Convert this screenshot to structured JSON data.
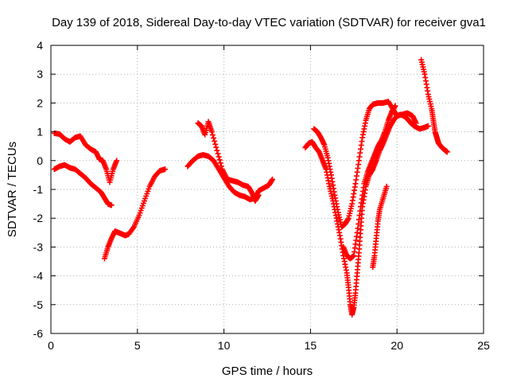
{
  "chart_data": {
    "type": "scatter",
    "title": "Day 139 of 2018, Sidereal Day-to-day VTEC variation (SDTVAR) for receiver gva1",
    "xlabel": "GPS time / hours",
    "ylabel": "SDTVAR / TECUs",
    "xlim": [
      0,
      25
    ],
    "ylim": [
      -6,
      4
    ],
    "xticks": [
      0,
      5,
      10,
      15,
      20,
      25
    ],
    "yticks": [
      -6,
      -5,
      -4,
      -3,
      -2,
      -1,
      0,
      1,
      2,
      3,
      4
    ],
    "grid": true,
    "marker": "plus",
    "color": "#ff0000",
    "series": [
      {
        "points": [
          [
            0.2,
            0.95
          ],
          [
            0.5,
            0.92
          ],
          [
            0.8,
            0.75
          ],
          [
            1.1,
            0.65
          ],
          [
            1.4,
            0.8
          ],
          [
            1.7,
            0.85
          ],
          [
            2.0,
            0.55
          ],
          [
            2.3,
            0.4
          ],
          [
            2.6,
            0.3
          ],
          [
            2.8,
            0.05
          ],
          [
            3.0,
            0.0
          ],
          [
            3.2,
            -0.3
          ],
          [
            3.4,
            -0.75
          ],
          [
            3.6,
            -0.3
          ],
          [
            3.8,
            0.0
          ]
        ]
      },
      {
        "points": [
          [
            0.2,
            -0.3
          ],
          [
            0.5,
            -0.2
          ],
          [
            0.8,
            -0.15
          ],
          [
            1.1,
            -0.25
          ],
          [
            1.4,
            -0.3
          ],
          [
            1.7,
            -0.45
          ],
          [
            2.0,
            -0.6
          ],
          [
            2.3,
            -0.8
          ],
          [
            2.6,
            -0.95
          ],
          [
            2.9,
            -1.1
          ],
          [
            3.1,
            -1.3
          ],
          [
            3.3,
            -1.5
          ],
          [
            3.5,
            -1.55
          ]
        ]
      },
      {
        "points": [
          [
            3.1,
            -3.4
          ],
          [
            3.3,
            -3.0
          ],
          [
            3.5,
            -2.7
          ],
          [
            3.7,
            -2.45
          ],
          [
            3.9,
            -2.5
          ],
          [
            4.1,
            -2.55
          ],
          [
            4.3,
            -2.6
          ],
          [
            4.5,
            -2.55
          ],
          [
            4.8,
            -2.3
          ],
          [
            5.1,
            -1.9
          ],
          [
            5.4,
            -1.4
          ],
          [
            5.7,
            -0.9
          ],
          [
            6.0,
            -0.55
          ],
          [
            6.3,
            -0.35
          ],
          [
            6.6,
            -0.3
          ]
        ]
      },
      {
        "points": [
          [
            7.9,
            -0.2
          ],
          [
            8.2,
            0.0
          ],
          [
            8.5,
            0.15
          ],
          [
            8.8,
            0.2
          ],
          [
            9.1,
            0.15
          ],
          [
            9.4,
            0.0
          ],
          [
            9.7,
            -0.3
          ],
          [
            10.0,
            -0.6
          ],
          [
            10.3,
            -0.9
          ],
          [
            10.6,
            -1.1
          ],
          [
            10.9,
            -1.2
          ],
          [
            11.2,
            -1.25
          ],
          [
            11.5,
            -1.35
          ],
          [
            11.8,
            -1.3
          ],
          [
            12.0,
            -1.05
          ],
          [
            12.3,
            -0.95
          ],
          [
            12.6,
            -0.85
          ],
          [
            12.8,
            -0.65
          ]
        ]
      },
      {
        "points": [
          [
            8.5,
            1.3
          ],
          [
            8.7,
            1.2
          ],
          [
            8.9,
            0.9
          ],
          [
            9.1,
            1.35
          ],
          [
            9.3,
            1.0
          ],
          [
            9.6,
            0.35
          ],
          [
            9.9,
            -0.3
          ],
          [
            10.2,
            -0.65
          ],
          [
            10.5,
            -0.7
          ],
          [
            10.8,
            -0.75
          ],
          [
            11.1,
            -0.85
          ],
          [
            11.4,
            -0.9
          ],
          [
            11.6,
            -1.1
          ],
          [
            11.8,
            -1.4
          ],
          [
            12.0,
            -1.2
          ]
        ]
      },
      {
        "points": [
          [
            14.7,
            0.45
          ],
          [
            14.9,
            0.6
          ],
          [
            15.1,
            0.65
          ],
          [
            15.3,
            0.45
          ],
          [
            15.5,
            0.3
          ],
          [
            15.7,
            0.0
          ],
          [
            15.9,
            -0.3
          ],
          [
            16.1,
            -0.9
          ],
          [
            16.3,
            -1.4
          ],
          [
            16.5,
            -2.0
          ],
          [
            16.7,
            -2.6
          ],
          [
            16.9,
            -3.3
          ],
          [
            17.1,
            -3.9
          ],
          [
            17.2,
            -4.4
          ],
          [
            17.3,
            -5.0
          ],
          [
            17.4,
            -5.35
          ],
          [
            17.5,
            -5.1
          ],
          [
            17.6,
            -4.6
          ],
          [
            17.7,
            -3.9
          ],
          [
            17.8,
            -3.2
          ],
          [
            17.9,
            -2.4
          ],
          [
            18.0,
            -1.6
          ],
          [
            18.2,
            -0.9
          ],
          [
            18.4,
            -0.5
          ],
          [
            18.6,
            -0.3
          ],
          [
            18.8,
            0.0
          ],
          [
            19.0,
            0.35
          ],
          [
            19.2,
            0.6
          ],
          [
            19.4,
            0.9
          ],
          [
            19.6,
            1.2
          ],
          [
            19.8,
            1.4
          ],
          [
            20.0,
            1.55
          ],
          [
            20.2,
            1.6
          ],
          [
            20.4,
            1.55
          ],
          [
            20.6,
            1.45
          ],
          [
            20.8,
            1.3
          ],
          [
            21.0,
            1.2
          ],
          [
            21.3,
            1.1
          ],
          [
            21.6,
            1.15
          ],
          [
            21.8,
            1.2
          ]
        ]
      },
      {
        "points": [
          [
            15.2,
            1.1
          ],
          [
            15.4,
            1.0
          ],
          [
            15.6,
            0.8
          ],
          [
            15.8,
            0.55
          ],
          [
            16.0,
            0.1
          ],
          [
            16.2,
            -0.5
          ],
          [
            16.4,
            -1.2
          ],
          [
            16.6,
            -1.8
          ],
          [
            16.8,
            -2.3
          ],
          [
            17.0,
            -2.2
          ],
          [
            17.2,
            -2.0
          ],
          [
            17.4,
            -1.5
          ],
          [
            17.6,
            -0.8
          ],
          [
            17.8,
            0.0
          ],
          [
            18.0,
            0.8
          ],
          [
            18.2,
            1.4
          ],
          [
            18.4,
            1.8
          ],
          [
            18.6,
            1.95
          ],
          [
            18.9,
            2.0
          ],
          [
            19.2,
            2.0
          ],
          [
            19.5,
            2.05
          ],
          [
            19.8,
            1.75
          ],
          [
            20.0,
            1.55
          ],
          [
            20.3,
            1.6
          ],
          [
            20.6,
            1.65
          ],
          [
            20.9,
            1.55
          ],
          [
            21.1,
            1.3
          ]
        ]
      },
      {
        "points": [
          [
            16.9,
            -3.0
          ],
          [
            17.1,
            -3.3
          ],
          [
            17.3,
            -3.4
          ],
          [
            17.5,
            -3.3
          ],
          [
            17.7,
            -2.5
          ],
          [
            17.9,
            -1.6
          ],
          [
            18.1,
            -0.8
          ],
          [
            18.3,
            -0.4
          ],
          [
            18.5,
            -0.1
          ],
          [
            18.7,
            0.2
          ],
          [
            18.9,
            0.5
          ],
          [
            19.1,
            0.7
          ],
          [
            19.3,
            1.0
          ],
          [
            19.5,
            1.4
          ],
          [
            19.7,
            1.7
          ],
          [
            19.9,
            1.9
          ]
        ]
      },
      {
        "points": [
          [
            18.6,
            -3.7
          ],
          [
            18.7,
            -3.3
          ],
          [
            18.8,
            -2.7
          ],
          [
            18.9,
            -2.1
          ],
          [
            19.0,
            -1.7
          ],
          [
            19.2,
            -1.3
          ],
          [
            19.4,
            -0.9
          ]
        ]
      },
      {
        "points": [
          [
            21.4,
            3.5
          ],
          [
            21.6,
            3.0
          ],
          [
            21.8,
            2.3
          ],
          [
            22.0,
            1.8
          ],
          [
            22.1,
            1.4
          ],
          [
            22.2,
            1.0
          ],
          [
            22.3,
            0.8
          ],
          [
            22.4,
            0.6
          ],
          [
            22.6,
            0.45
          ],
          [
            22.8,
            0.35
          ],
          [
            22.9,
            0.3
          ]
        ]
      }
    ]
  }
}
